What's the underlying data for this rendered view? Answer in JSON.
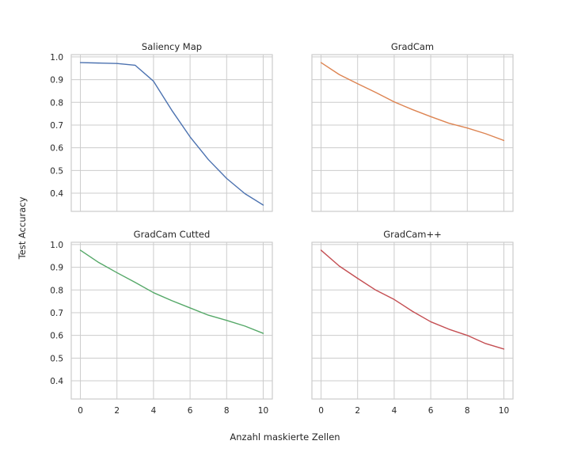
{
  "figure": {
    "xlabel": "Anzahl maskierte Zellen",
    "ylabel": "Test Accuracy"
  },
  "chart_data": [
    {
      "type": "line",
      "title": "Saliency Map",
      "color": "#4c72b0",
      "x": [
        0,
        1,
        2,
        3,
        4,
        5,
        6,
        7,
        8,
        9,
        10
      ],
      "values": [
        0.975,
        0.973,
        0.971,
        0.963,
        0.893,
        0.765,
        0.648,
        0.548,
        0.465,
        0.398,
        0.348
      ],
      "xlim": [
        -0.5,
        10.5
      ],
      "ylim": [
        0.32,
        1.01
      ],
      "xticks": [
        0,
        2,
        4,
        6,
        8,
        10
      ],
      "yticks": [
        0.4,
        0.5,
        0.6,
        0.7,
        0.8,
        0.9,
        1.0
      ],
      "grid": true
    },
    {
      "type": "line",
      "title": "GradCam",
      "color": "#dd8452",
      "x": [
        0,
        1,
        2,
        3,
        4,
        5,
        6,
        7,
        8,
        9,
        10
      ],
      "values": [
        0.975,
        0.922,
        0.882,
        0.843,
        0.802,
        0.768,
        0.737,
        0.708,
        0.687,
        0.662,
        0.632
      ],
      "xlim": [
        -0.5,
        10.5
      ],
      "ylim": [
        0.32,
        1.01
      ],
      "xticks": [
        0,
        2,
        4,
        6,
        8,
        10
      ],
      "yticks": [
        0.4,
        0.5,
        0.6,
        0.7,
        0.8,
        0.9,
        1.0
      ],
      "grid": true
    },
    {
      "type": "line",
      "title": "GradCam Cutted",
      "color": "#55a868",
      "x": [
        0,
        1,
        2,
        3,
        4,
        5,
        6,
        7,
        8,
        9,
        10
      ],
      "values": [
        0.975,
        0.921,
        0.876,
        0.833,
        0.788,
        0.753,
        0.721,
        0.689,
        0.666,
        0.641,
        0.609
      ],
      "xlim": [
        -0.5,
        10.5
      ],
      "ylim": [
        0.32,
        1.01
      ],
      "xticks": [
        0,
        2,
        4,
        6,
        8,
        10
      ],
      "yticks": [
        0.4,
        0.5,
        0.6,
        0.7,
        0.8,
        0.9,
        1.0
      ],
      "grid": true
    },
    {
      "type": "line",
      "title": "GradCam++",
      "color": "#c44e52",
      "x": [
        0,
        1,
        2,
        3,
        4,
        5,
        6,
        7,
        8,
        9,
        10
      ],
      "values": [
        0.975,
        0.905,
        0.851,
        0.799,
        0.758,
        0.706,
        0.66,
        0.627,
        0.6,
        0.564,
        0.54
      ],
      "xlim": [
        -0.5,
        10.5
      ],
      "ylim": [
        0.32,
        1.01
      ],
      "xticks": [
        0,
        2,
        4,
        6,
        8,
        10
      ],
      "yticks": [
        0.4,
        0.5,
        0.6,
        0.7,
        0.8,
        0.9,
        1.0
      ],
      "grid": true
    }
  ]
}
